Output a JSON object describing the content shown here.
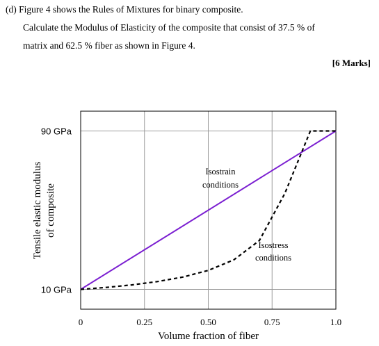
{
  "question": {
    "intro": "(d) Figure 4 shows the Rules of Mixtures for binary composite.",
    "calc_line1": "Calculate the Modulus of Elasticity of the composite that consist of 37.5 % of",
    "calc_line2": "matrix and 62.5 % fiber as shown in Figure 4.",
    "marks": "[6 Marks]"
  },
  "chart_data": {
    "type": "line",
    "xlabel": "Volume fraction of fiber",
    "ylabel_line1": "Tensile elastic modulus",
    "ylabel_line2": "of composite",
    "x_ticks": [
      {
        "value": 0,
        "label": "0"
      },
      {
        "value": 0.25,
        "label": "0.25"
      },
      {
        "value": 0.5,
        "label": "0.50"
      },
      {
        "value": 0.75,
        "label": "0.75"
      },
      {
        "value": 1.0,
        "label": "1.0"
      }
    ],
    "y_ticks": [
      {
        "value": 10,
        "label": "10 GPa"
      },
      {
        "value": 90,
        "label": "90 GPa"
      }
    ],
    "xlim": [
      0,
      1
    ],
    "ylim": [
      0,
      100
    ],
    "grid": true,
    "series": [
      {
        "name": "Isostrain conditions",
        "label_lines": [
          "Isostrain",
          "conditions"
        ],
        "color": "#7b1fd1",
        "style": "solid",
        "x": [
          0,
          1
        ],
        "y": [
          10,
          90
        ]
      },
      {
        "name": "Isostress conditions",
        "label_lines": [
          "Isostress",
          "conditions"
        ],
        "color": "#000000",
        "style": "dashed",
        "x": [
          0,
          0.1,
          0.2,
          0.3,
          0.4,
          0.5,
          0.6,
          0.7,
          0.8,
          0.9,
          1.0
        ],
        "y": [
          10,
          10.99,
          12.26,
          13.92,
          16.22,
          19.57,
          24.91,
          34.62,
          58.44,
          90,
          90
        ]
      }
    ]
  }
}
